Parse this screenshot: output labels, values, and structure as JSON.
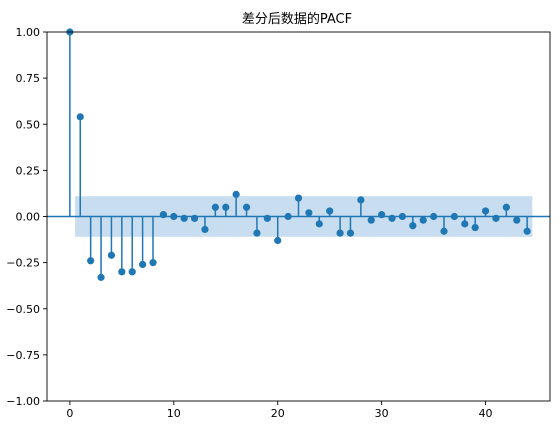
{
  "chart_data": {
    "type": "stem",
    "title": "差分后数据的PACF",
    "xlabel": "",
    "ylabel": "",
    "xlim": [
      -2.2,
      46.2
    ],
    "ylim": [
      -1.0,
      1.0
    ],
    "xticks": [
      0,
      10,
      20,
      30,
      40
    ],
    "yticks": [
      -1.0,
      -0.75,
      -0.5,
      -0.25,
      0.0,
      0.25,
      0.5,
      0.75,
      1.0
    ],
    "xtick_labels": [
      "0",
      "10",
      "20",
      "30",
      "40"
    ],
    "ytick_labels": [
      "−1.00",
      "−0.75",
      "−0.50",
      "−0.25",
      "0.00",
      "0.25",
      "0.50",
      "0.75",
      "1.00"
    ],
    "confidence_band": {
      "x_start": 0.5,
      "x_end": 44.5,
      "lower": -0.11,
      "upper": 0.11
    },
    "grid": false,
    "colors": {
      "stem": "#1f77b4",
      "band": "#c6dbef"
    },
    "series": [
      {
        "lags": [
          0,
          1,
          2,
          3,
          4,
          5,
          6,
          7,
          8,
          9,
          10,
          11,
          12,
          13,
          14,
          15,
          16,
          17,
          18,
          19,
          20,
          21,
          22,
          23,
          24,
          25,
          26,
          27,
          28,
          29,
          30,
          31,
          32,
          33,
          34,
          35,
          36,
          37,
          38,
          39,
          40,
          41,
          42,
          43,
          44
        ],
        "values": [
          1.0,
          0.54,
          -0.24,
          -0.33,
          -0.21,
          -0.3,
          -0.3,
          -0.26,
          -0.25,
          0.01,
          0.0,
          -0.01,
          -0.01,
          -0.07,
          0.05,
          0.05,
          0.12,
          0.05,
          -0.09,
          -0.01,
          -0.13,
          0.0,
          0.1,
          0.02,
          -0.04,
          0.03,
          -0.09,
          -0.09,
          0.09,
          -0.02,
          0.01,
          -0.01,
          0.0,
          -0.05,
          -0.02,
          0.0,
          -0.08,
          0.0,
          -0.04,
          -0.06,
          0.03,
          -0.01,
          0.05,
          -0.02,
          -0.08
        ]
      }
    ]
  }
}
